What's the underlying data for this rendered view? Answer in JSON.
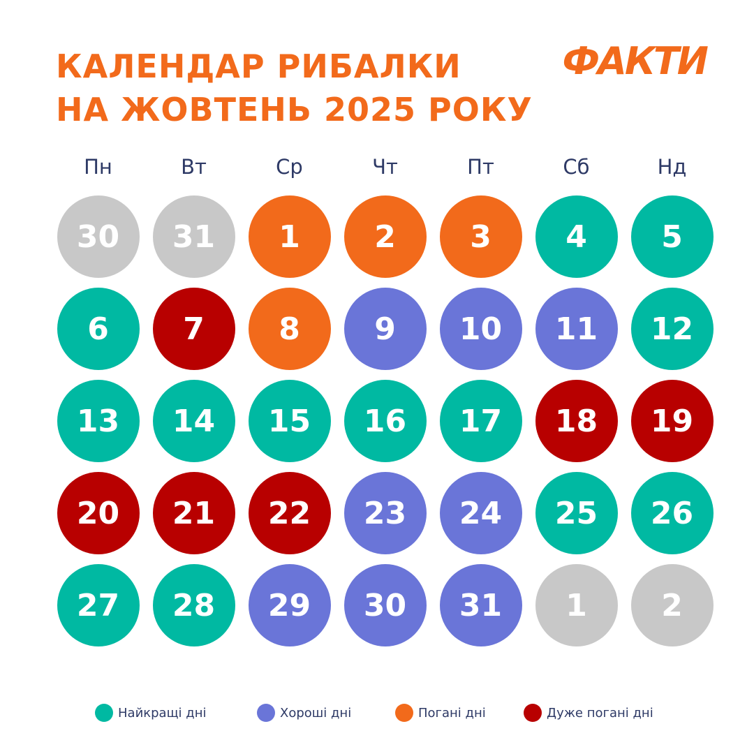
{
  "title": {
    "line1": "КАЛЕНДАР РИБАЛКИ",
    "line2": "НА ЖОВТЕНЬ 2025 РОКУ"
  },
  "logo": "ФАКТИ",
  "colors": {
    "best": "#00b9a2",
    "good": "#6a75d8",
    "bad": "#f26a1b",
    "very_bad": "#b80000",
    "inactive": "#c8c8c8",
    "brand": "#f26a1b"
  },
  "weekdays": [
    "Пн",
    "Вт",
    "Ср",
    "Чт",
    "Пт",
    "Сб",
    "Нд"
  ],
  "days": [
    {
      "day": "30",
      "type": "inactive"
    },
    {
      "day": "31",
      "type": "inactive"
    },
    {
      "day": "1",
      "type": "bad"
    },
    {
      "day": "2",
      "type": "bad"
    },
    {
      "day": "3",
      "type": "bad"
    },
    {
      "day": "4",
      "type": "best"
    },
    {
      "day": "5",
      "type": "best"
    },
    {
      "day": "6",
      "type": "best"
    },
    {
      "day": "7",
      "type": "very_bad"
    },
    {
      "day": "8",
      "type": "bad"
    },
    {
      "day": "9",
      "type": "good"
    },
    {
      "day": "10",
      "type": "good"
    },
    {
      "day": "11",
      "type": "good"
    },
    {
      "day": "12",
      "type": "best"
    },
    {
      "day": "13",
      "type": "best"
    },
    {
      "day": "14",
      "type": "best"
    },
    {
      "day": "15",
      "type": "best"
    },
    {
      "day": "16",
      "type": "best"
    },
    {
      "day": "17",
      "type": "best"
    },
    {
      "day": "18",
      "type": "very_bad"
    },
    {
      "day": "19",
      "type": "very_bad"
    },
    {
      "day": "20",
      "type": "very_bad"
    },
    {
      "day": "21",
      "type": "very_bad"
    },
    {
      "day": "22",
      "type": "very_bad"
    },
    {
      "day": "23",
      "type": "good"
    },
    {
      "day": "24",
      "type": "good"
    },
    {
      "day": "25",
      "type": "best"
    },
    {
      "day": "26",
      "type": "best"
    },
    {
      "day": "27",
      "type": "best"
    },
    {
      "day": "28",
      "type": "best"
    },
    {
      "day": "29",
      "type": "good"
    },
    {
      "day": "30",
      "type": "good"
    },
    {
      "day": "31",
      "type": "good"
    },
    {
      "day": "1",
      "type": "inactive"
    },
    {
      "day": "2",
      "type": "inactive"
    }
  ],
  "legend": [
    {
      "type": "best",
      "label": "Найкращі дні"
    },
    {
      "type": "good",
      "label": "Хороші дні"
    },
    {
      "type": "bad",
      "label": "Погані дні"
    },
    {
      "type": "very_bad",
      "label": "Дуже погані дні"
    }
  ]
}
